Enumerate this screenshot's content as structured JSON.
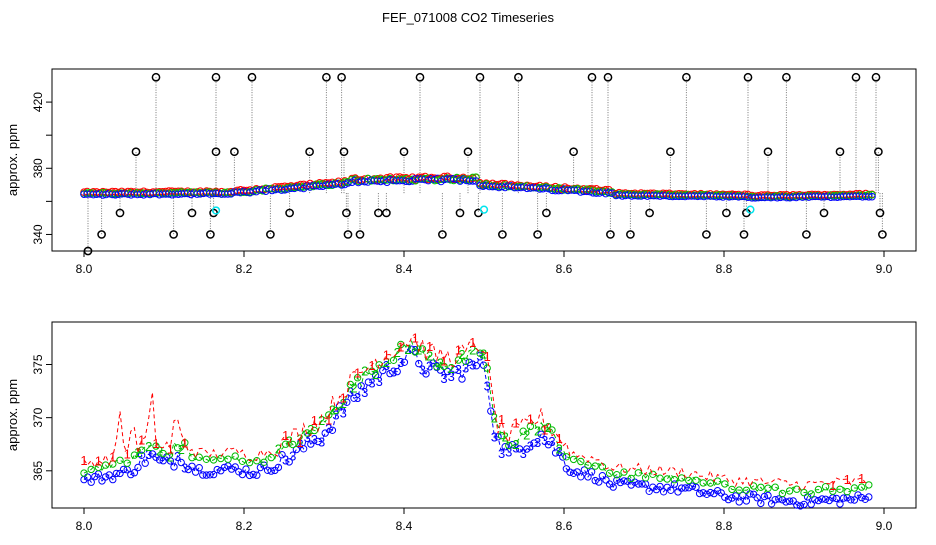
{
  "figure": {
    "title": "FEF_071008  CO2 Timeseries"
  },
  "chart_data": [
    {
      "type": "scatter",
      "ylabel": "approx. ppm",
      "xlabel": "",
      "xlim": [
        8.0,
        9.0
      ],
      "ylim": [
        330,
        440
      ],
      "xticks": [
        "8.0",
        "8.2",
        "8.4",
        "8.6",
        "8.8",
        "9.0"
      ],
      "yticks": [
        "340",
        "380",
        "420"
      ],
      "yticks_minor": [
        360,
        400
      ],
      "series": [
        {
          "name": "red",
          "color": "#ff0000"
        },
        {
          "name": "green",
          "color": "#00cc00"
        },
        {
          "name": "blue",
          "color": "#0000ff"
        },
        {
          "name": "outliers",
          "color": "#000000"
        },
        {
          "name": "cyan",
          "color": "#00e5ee"
        }
      ],
      "baseline_segments": [
        {
          "x0": 8.0,
          "x1": 8.165,
          "y0": 364.5,
          "y1": 365.0,
          "jitter": 1.0
        },
        {
          "x0": 8.168,
          "x1": 8.33,
          "y0": 364.5,
          "y1": 371.0,
          "jitter": 1.5
        },
        {
          "x0": 8.335,
          "x1": 8.49,
          "y0": 372.5,
          "y1": 373.5,
          "jitter": 2.0
        },
        {
          "x0": 8.495,
          "x1": 8.66,
          "y0": 370.0,
          "y1": 365.5,
          "jitter": 1.5
        },
        {
          "x0": 8.665,
          "x1": 8.83,
          "y0": 364.0,
          "y1": 363.0,
          "jitter": 0.8
        },
        {
          "x0": 8.835,
          "x1": 8.985,
          "y0": 362.5,
          "y1": 363.5,
          "jitter": 0.8
        }
      ],
      "outliers": [
        [
          8.005,
          330
        ],
        [
          8.022,
          340
        ],
        [
          8.045,
          353
        ],
        [
          8.065,
          390
        ],
        [
          8.09,
          435
        ],
        [
          8.112,
          340
        ],
        [
          8.135,
          353
        ],
        [
          8.158,
          340
        ],
        [
          8.162,
          353
        ],
        [
          8.165,
          390
        ],
        [
          8.165,
          435
        ],
        [
          8.188,
          390
        ],
        [
          8.21,
          435
        ],
        [
          8.233,
          340
        ],
        [
          8.257,
          353
        ],
        [
          8.282,
          390
        ],
        [
          8.303,
          435
        ],
        [
          8.322,
          435
        ],
        [
          8.325,
          390
        ],
        [
          8.328,
          353
        ],
        [
          8.33,
          340
        ],
        [
          8.345,
          340
        ],
        [
          8.368,
          353
        ],
        [
          8.378,
          353
        ],
        [
          8.4,
          390
        ],
        [
          8.42,
          435
        ],
        [
          8.448,
          340
        ],
        [
          8.47,
          353
        ],
        [
          8.48,
          390
        ],
        [
          8.493,
          353
        ],
        [
          8.495,
          435
        ],
        [
          8.523,
          340
        ],
        [
          8.543,
          435
        ],
        [
          8.567,
          340
        ],
        [
          8.578,
          353
        ],
        [
          8.612,
          390
        ],
        [
          8.635,
          435
        ],
        [
          8.655,
          435
        ],
        [
          8.658,
          340
        ],
        [
          8.683,
          340
        ],
        [
          8.707,
          353
        ],
        [
          8.733,
          390
        ],
        [
          8.753,
          435
        ],
        [
          8.778,
          340
        ],
        [
          8.803,
          353
        ],
        [
          8.825,
          340
        ],
        [
          8.828,
          353
        ],
        [
          8.83,
          435
        ],
        [
          8.855,
          390
        ],
        [
          8.878,
          435
        ],
        [
          8.903,
          340
        ],
        [
          8.925,
          353
        ],
        [
          8.945,
          390
        ],
        [
          8.965,
          435
        ],
        [
          8.99,
          435
        ],
        [
          8.993,
          390
        ],
        [
          8.995,
          353
        ],
        [
          8.998,
          340
        ]
      ],
      "cyan_points": [
        [
          8.165,
          354.5
        ],
        [
          8.5,
          355.0
        ],
        [
          8.833,
          355.0
        ]
      ]
    },
    {
      "type": "line",
      "ylabel": "approx. ppm",
      "xlabel": "",
      "xlim": [
        8.0,
        9.0
      ],
      "ylim": [
        361.5,
        379.0
      ],
      "xticks": [
        "8.0",
        "8.2",
        "8.4",
        "8.6",
        "8.8",
        "9.0"
      ],
      "yticks": [
        "365",
        "370",
        "375"
      ],
      "series": [
        {
          "name": "1",
          "label": "1",
          "color": "#ff0000",
          "offset": 1.1,
          "noise": 1.1,
          "spikes": [
            [
              8.045,
              4.5
            ],
            [
              8.06,
              3.5
            ],
            [
              8.085,
              4.0
            ],
            [
              8.115,
              2.5
            ]
          ]
        },
        {
          "name": "2",
          "label": "2",
          "color": "#00bb00",
          "offset": 0.5,
          "noise": 0.7,
          "spikes": []
        },
        {
          "name": "3",
          "label": "3",
          "color": "#0000ff",
          "offset": -0.5,
          "noise": 0.9,
          "spikes": []
        }
      ],
      "envelope": [
        [
          8.0,
          364.6
        ],
        [
          8.03,
          365.0
        ],
        [
          8.06,
          365.5
        ],
        [
          8.08,
          367.0
        ],
        [
          8.1,
          366.0
        ],
        [
          8.12,
          367.0
        ],
        [
          8.14,
          365.6
        ],
        [
          8.16,
          365.5
        ],
        [
          8.19,
          365.7
        ],
        [
          8.21,
          365.3
        ],
        [
          8.24,
          366.0
        ],
        [
          8.27,
          367.5
        ],
        [
          8.3,
          369.0
        ],
        [
          8.33,
          372.0
        ],
        [
          8.36,
          374.0
        ],
        [
          8.39,
          375.5
        ],
        [
          8.41,
          376.5
        ],
        [
          8.43,
          375.0
        ],
        [
          8.46,
          374.5
        ],
        [
          8.49,
          375.5
        ],
        [
          8.5,
          375.8
        ],
        [
          8.515,
          368.5
        ],
        [
          8.53,
          367.0
        ],
        [
          8.55,
          368.0
        ],
        [
          8.57,
          369.0
        ],
        [
          8.59,
          367.5
        ],
        [
          8.61,
          365.5
        ],
        [
          8.64,
          365.0
        ],
        [
          8.66,
          364.2
        ],
        [
          8.7,
          364.0
        ],
        [
          8.75,
          363.8
        ],
        [
          8.8,
          363.1
        ],
        [
          8.85,
          362.8
        ],
        [
          8.9,
          362.6
        ],
        [
          8.95,
          362.8
        ],
        [
          8.985,
          362.9
        ]
      ]
    }
  ]
}
